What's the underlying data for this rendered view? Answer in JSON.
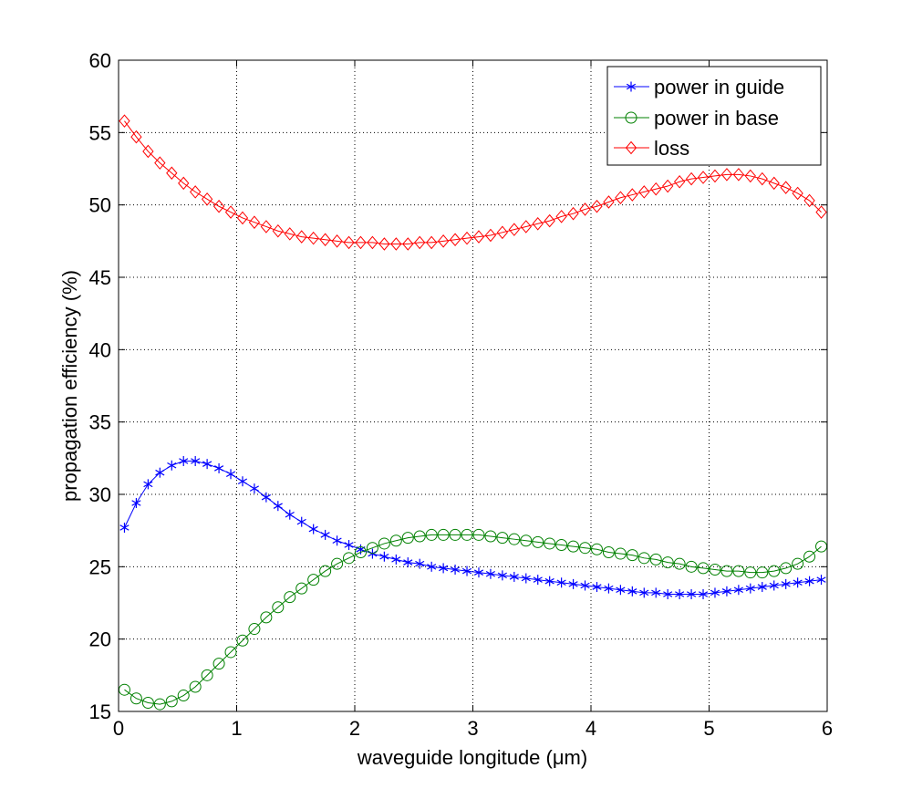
{
  "chart_data": {
    "type": "line",
    "xlabel": "waveguide longitude (μm)",
    "ylabel": "propagation efficiency (%)",
    "xlim": [
      0,
      6
    ],
    "ylim": [
      15,
      60
    ],
    "xticks": [
      "0",
      "1",
      "2",
      "3",
      "4",
      "5",
      "6"
    ],
    "yticks": [
      "15",
      "20",
      "25",
      "30",
      "35",
      "40",
      "45",
      "50",
      "55",
      "60"
    ],
    "grid": true,
    "legend_position": "top-right",
    "x": [
      0.05,
      0.15,
      0.25,
      0.35,
      0.45,
      0.55,
      0.65,
      0.75,
      0.85,
      0.95,
      1.05,
      1.15,
      1.25,
      1.35,
      1.45,
      1.55,
      1.65,
      1.75,
      1.85,
      1.95,
      2.05,
      2.15,
      2.25,
      2.35,
      2.45,
      2.55,
      2.65,
      2.75,
      2.85,
      2.95,
      3.05,
      3.15,
      3.25,
      3.35,
      3.45,
      3.55,
      3.65,
      3.75,
      3.85,
      3.95,
      4.05,
      4.15,
      4.25,
      4.35,
      4.45,
      4.55,
      4.65,
      4.75,
      4.85,
      4.95,
      5.05,
      5.15,
      5.25,
      5.35,
      5.45,
      5.55,
      5.65,
      5.75,
      5.85,
      5.95
    ],
    "series": [
      {
        "name": "power in guide",
        "color": "#0000ff",
        "marker": "asterisk",
        "values": [
          27.7,
          29.4,
          30.7,
          31.5,
          32.0,
          32.3,
          32.3,
          32.1,
          31.8,
          31.4,
          30.9,
          30.4,
          29.8,
          29.2,
          28.6,
          28.1,
          27.6,
          27.2,
          26.8,
          26.5,
          26.2,
          25.9,
          25.7,
          25.5,
          25.3,
          25.2,
          25.0,
          24.9,
          24.8,
          24.7,
          24.6,
          24.5,
          24.4,
          24.3,
          24.2,
          24.1,
          24.0,
          23.9,
          23.8,
          23.7,
          23.6,
          23.5,
          23.4,
          23.3,
          23.2,
          23.2,
          23.1,
          23.1,
          23.1,
          23.1,
          23.2,
          23.3,
          23.4,
          23.5,
          23.6,
          23.7,
          23.8,
          23.9,
          24.0,
          24.1
        ]
      },
      {
        "name": "power in base",
        "color": "#008000",
        "marker": "circle",
        "values": [
          16.5,
          15.9,
          15.6,
          15.5,
          15.7,
          16.1,
          16.7,
          17.5,
          18.3,
          19.1,
          19.9,
          20.7,
          21.5,
          22.2,
          22.9,
          23.5,
          24.1,
          24.7,
          25.2,
          25.6,
          26.0,
          26.3,
          26.6,
          26.8,
          27.0,
          27.1,
          27.2,
          27.2,
          27.2,
          27.2,
          27.2,
          27.1,
          27.0,
          26.9,
          26.8,
          26.7,
          26.6,
          26.5,
          26.4,
          26.3,
          26.2,
          26.0,
          25.9,
          25.8,
          25.6,
          25.5,
          25.3,
          25.2,
          25.0,
          24.9,
          24.8,
          24.7,
          24.7,
          24.6,
          24.6,
          24.7,
          24.9,
          25.2,
          25.7,
          26.4
        ]
      },
      {
        "name": "loss",
        "color": "#ff0000",
        "marker": "diamond",
        "values": [
          55.8,
          54.7,
          53.7,
          52.9,
          52.2,
          51.5,
          50.9,
          50.4,
          49.9,
          49.5,
          49.1,
          48.8,
          48.5,
          48.2,
          48.0,
          47.8,
          47.7,
          47.6,
          47.5,
          47.4,
          47.4,
          47.4,
          47.3,
          47.3,
          47.3,
          47.4,
          47.4,
          47.5,
          47.6,
          47.7,
          47.8,
          47.9,
          48.1,
          48.3,
          48.5,
          48.7,
          48.9,
          49.2,
          49.4,
          49.7,
          49.9,
          50.2,
          50.5,
          50.7,
          50.9,
          51.1,
          51.3,
          51.6,
          51.8,
          51.9,
          52.0,
          52.1,
          52.1,
          52.0,
          51.8,
          51.5,
          51.2,
          50.8,
          50.3,
          49.5
        ]
      }
    ]
  }
}
